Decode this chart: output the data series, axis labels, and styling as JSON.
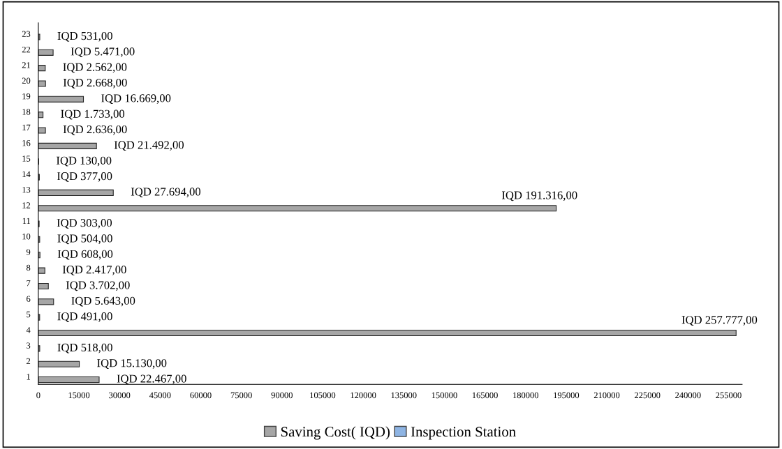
{
  "chart_data": {
    "type": "bar",
    "orientation": "horizontal",
    "categories": [
      "23",
      "22",
      "21",
      "20",
      "19",
      "18",
      "17",
      "16",
      "15",
      "14",
      "13",
      "12",
      "11",
      "10",
      "9",
      "8",
      "7",
      "6",
      "5",
      "4",
      "3",
      "2",
      "1"
    ],
    "series": [
      {
        "name": "Saving Cost( IQD)",
        "color": "#a6a6a6",
        "values": [
          531,
          5471,
          2562,
          2668,
          16669,
          1733,
          2636,
          21492,
          130,
          377,
          27694,
          191316,
          303,
          504,
          608,
          2417,
          3702,
          5643,
          491,
          257777,
          518,
          15130,
          22467
        ],
        "value_labels": [
          "IQD 531,00",
          "IQD 5.471,00",
          "IQD 2.562,00",
          "IQD 2.668,00",
          "IQD 16.669,00",
          "IQD 1.733,00",
          "IQD 2.636,00",
          "IQD 21.492,00",
          "IQD 130,00",
          "IQD 377,00",
          "IQD 27.694,00",
          "IQD 191.316,00",
          "IQD 303,00",
          "IQD 504,00",
          "IQD 608,00",
          "IQD 2.417,00",
          "IQD 3.702,00",
          "IQD 5.643,00",
          "IQD 491,00",
          "IQD 257.777,00",
          "IQD 518,00",
          "IQD 15.130,00",
          "IQD 22.467,00"
        ]
      },
      {
        "name": "Inspection Station",
        "color": "#8eb4e3",
        "values": [
          null,
          null,
          null,
          null,
          null,
          null,
          null,
          null,
          null,
          null,
          null,
          null,
          null,
          null,
          null,
          null,
          null,
          null,
          null,
          null,
          null,
          null,
          null
        ]
      }
    ],
    "xlim": [
      0,
      260000
    ],
    "xticks": [
      0,
      15000,
      30000,
      45000,
      60000,
      75000,
      90000,
      105000,
      120000,
      135000,
      150000,
      165000,
      180000,
      195000,
      210000,
      225000,
      240000,
      255000
    ],
    "grid": false,
    "legend": "bottom"
  }
}
